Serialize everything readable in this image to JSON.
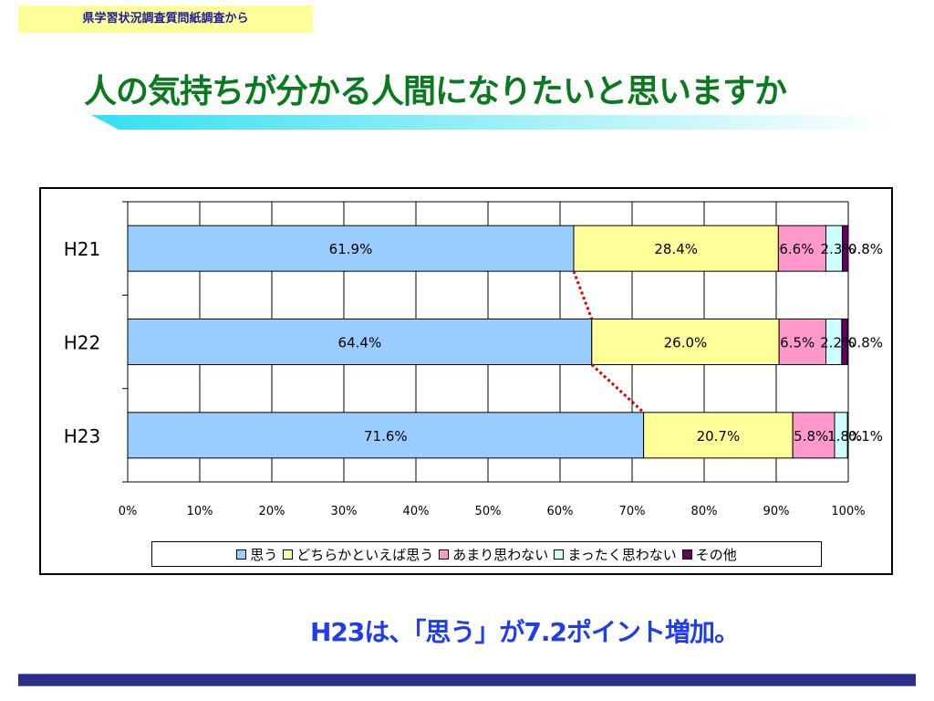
{
  "header": {
    "source_label": "県学習状況調査質問紙調査から"
  },
  "slide": {
    "title": "人の気持ちが分かる人間になりたいと思いますか",
    "conclusion": "H23は、「思う」が7.2ポイント増加。"
  },
  "colors": {
    "title": "#0a7a1e",
    "conclusion": "#1f3df0",
    "footer_bar": "#2a2f8a",
    "trend_line": "#e00000"
  },
  "chart_data": {
    "type": "bar",
    "orientation": "horizontal",
    "stacked": true,
    "percent": true,
    "title": "",
    "xlabel": "",
    "ylabel": "",
    "xlim": [
      0,
      100
    ],
    "x_ticks": [
      "0%",
      "10%",
      "20%",
      "30%",
      "40%",
      "50%",
      "60%",
      "70%",
      "80%",
      "90%",
      "100%"
    ],
    "grid": true,
    "legend_position": "bottom",
    "categories": [
      "H21",
      "H22",
      "H23"
    ],
    "series": [
      {
        "name": "思う",
        "color": "#99ccff",
        "values": [
          61.9,
          64.4,
          71.6
        ],
        "labels": [
          "61.9%",
          "64.4%",
          "71.6%"
        ]
      },
      {
        "name": "どちらかといえば思う",
        "color": "#ffff99",
        "values": [
          28.4,
          26.0,
          20.7
        ],
        "labels": [
          "28.4%",
          "26.0%",
          "20.7%"
        ]
      },
      {
        "name": "あまり思わない",
        "color": "#ff99cc",
        "values": [
          6.6,
          6.5,
          5.8
        ],
        "labels": [
          "6.6%",
          "6.5%",
          "5.8%"
        ]
      },
      {
        "name": "まったく思わない",
        "color": "#ccffff",
        "values": [
          2.3,
          2.2,
          1.8
        ],
        "labels": [
          "2.3%",
          "2.2%",
          "1.8%"
        ]
      },
      {
        "name": "その他",
        "color": "#660066",
        "values": [
          0.8,
          0.8,
          0.1
        ],
        "labels": [
          "0.8%",
          "0.8%",
          "0.1%"
        ]
      }
    ]
  }
}
